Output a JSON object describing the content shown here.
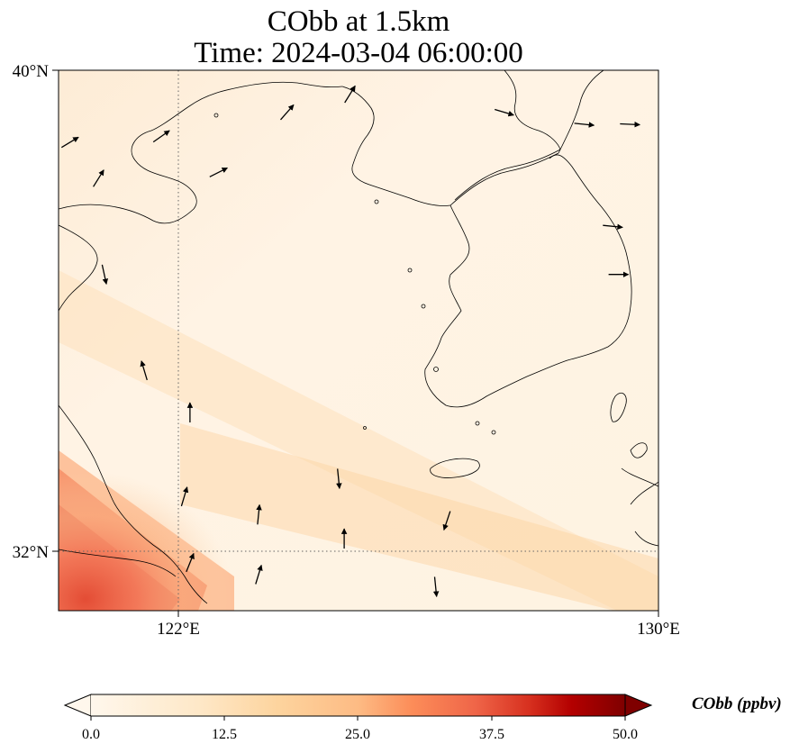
{
  "title": "CObb at 1.5km",
  "subtitle": "Time: 2024-03-04 06:00:00",
  "map": {
    "lon_range": [
      119.5,
      130
    ],
    "lat_range": [
      31,
      40
    ],
    "lon_ticks": [
      {
        "value": 122,
        "label": "122°E"
      },
      {
        "value": 130,
        "label": "130°E"
      }
    ],
    "lat_ticks": [
      {
        "value": 40,
        "label": "40°N"
      },
      {
        "value": 32,
        "label": "32°N"
      }
    ],
    "gridlines": "dotted at 122°E and 32°N",
    "field": "CObb concentration with wind vectors",
    "coastlines": true
  },
  "colorbar": {
    "label": "CObb (ppbv)",
    "min": 0.0,
    "max": 50.0,
    "ticks": [
      "0.0",
      "12.5",
      "25.0",
      "37.5",
      "50.0"
    ],
    "colormap": "OrRd",
    "extend": "both",
    "colors": [
      "#fff7ec",
      "#fdd49e",
      "#fc8d59",
      "#d7301f",
      "#7f0000"
    ]
  },
  "chart_data": {
    "type": "heatmap",
    "title": "CObb at 1.5km",
    "subtitle": "Time: 2024-03-04 06:00:00",
    "xlabel": "",
    "ylabel": "",
    "xlim": [
      119.5,
      130
    ],
    "ylim": [
      31,
      40
    ],
    "value_range": [
      0,
      50
    ],
    "units": "ppbv",
    "plume": {
      "description": "high values in southwest corner near 120-122°E, 31-32°N",
      "peak_value_estimate": 28
    },
    "wind_vectors": [
      {
        "lon": 119.7,
        "lat": 38.8,
        "u": 1,
        "v": 0.6
      },
      {
        "lon": 120.2,
        "lat": 38.2,
        "u": 0.5,
        "v": 0.8
      },
      {
        "lon": 121.3,
        "lat": 38.9,
        "u": 1,
        "v": 0.7
      },
      {
        "lon": 122.3,
        "lat": 38.3,
        "u": 1,
        "v": 0.5
      },
      {
        "lon": 123.5,
        "lat": 39.3,
        "u": 0.7,
        "v": 0.8
      },
      {
        "lon": 124.6,
        "lat": 39.6,
        "u": 0.5,
        "v": 0.8
      },
      {
        "lon": 127.3,
        "lat": 39.3,
        "u": 1,
        "v": -0.3
      },
      {
        "lon": 128.7,
        "lat": 39.1,
        "u": 1,
        "v": -0.1
      },
      {
        "lon": 129.5,
        "lat": 39.1,
        "u": 1,
        "v": -0.05
      },
      {
        "lon": 129.2,
        "lat": 37.4,
        "u": 1,
        "v": -0.1
      },
      {
        "lon": 129.3,
        "lat": 36.6,
        "u": 1,
        "v": 0
      },
      {
        "lon": 120.3,
        "lat": 36.6,
        "u": 0.2,
        "v": -0.9
      },
      {
        "lon": 121.0,
        "lat": 35.0,
        "u": -0.3,
        "v": 1
      },
      {
        "lon": 121.8,
        "lat": 34.3,
        "u": 0,
        "v": 1
      },
      {
        "lon": 124.4,
        "lat": 33.2,
        "u": 0.1,
        "v": -1
      },
      {
        "lon": 126.3,
        "lat": 32.5,
        "u": -0.3,
        "v": -0.9
      },
      {
        "lon": 121.7,
        "lat": 32.9,
        "u": 0.3,
        "v": 1
      },
      {
        "lon": 123.0,
        "lat": 32.6,
        "u": 0.1,
        "v": 1
      },
      {
        "lon": 124.5,
        "lat": 32.2,
        "u": 0,
        "v": 1
      },
      {
        "lon": 126.1,
        "lat": 31.4,
        "u": 0.1,
        "v": -1
      },
      {
        "lon": 123.0,
        "lat": 31.6,
        "u": 0.3,
        "v": 1
      },
      {
        "lon": 121.8,
        "lat": 31.8,
        "u": 0.4,
        "v": 1
      }
    ]
  }
}
